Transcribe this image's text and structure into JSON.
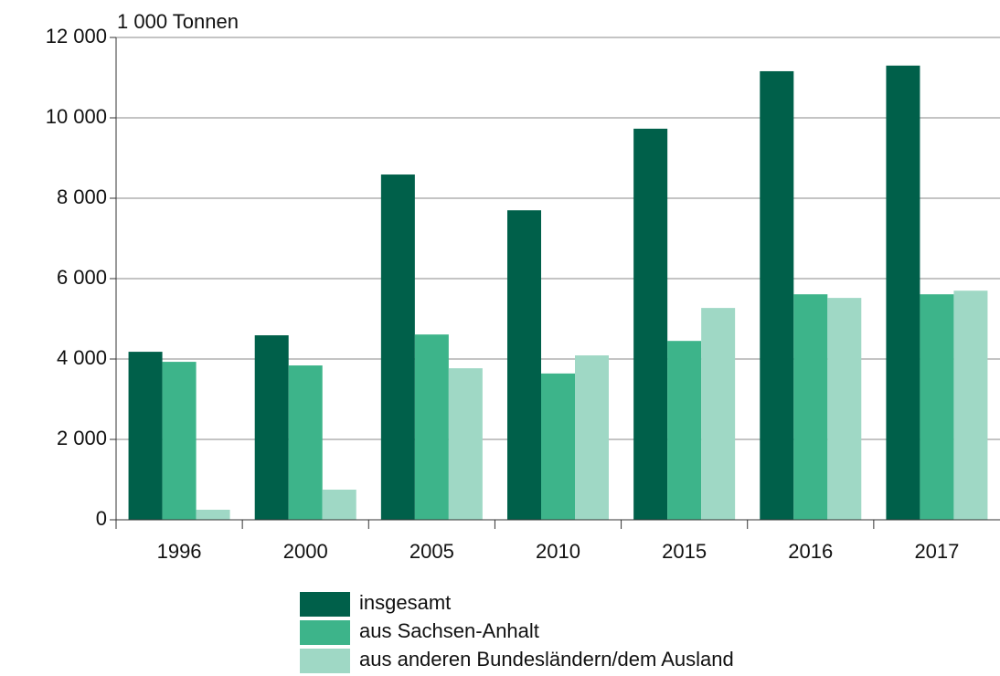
{
  "chart_data": {
    "type": "bar",
    "y_axis_label": "1 000 Tonnen",
    "categories": [
      "1996",
      "2000",
      "2005",
      "2010",
      "2015",
      "2016",
      "2017"
    ],
    "series": [
      {
        "name": "insgesamt",
        "color": "#00604a",
        "values": [
          4180,
          4590,
          8590,
          7700,
          9730,
          11160,
          11300
        ]
      },
      {
        "name": "aus Sachsen-Anhalt",
        "color": "#3db48a",
        "values": [
          3930,
          3840,
          4610,
          3640,
          4450,
          5610,
          5610
        ]
      },
      {
        "name": "aus anderen Bundesländern/dem Ausland",
        "color": "#9fd8c5",
        "values": [
          250,
          750,
          3770,
          4090,
          5270,
          5520,
          5700
        ]
      }
    ],
    "ylim": [
      0,
      12000
    ],
    "yticks": [
      0,
      {
        "value": 2000,
        "label": "2 000"
      },
      {
        "value": 4000,
        "label": "4 000"
      },
      {
        "value": 6000,
        "label": "6 000"
      },
      {
        "value": 8000,
        "label": "8 000"
      },
      {
        "value": 10000,
        "label": "10 000"
      },
      {
        "value": 12000,
        "label": "12 000"
      }
    ],
    "grid": true
  }
}
